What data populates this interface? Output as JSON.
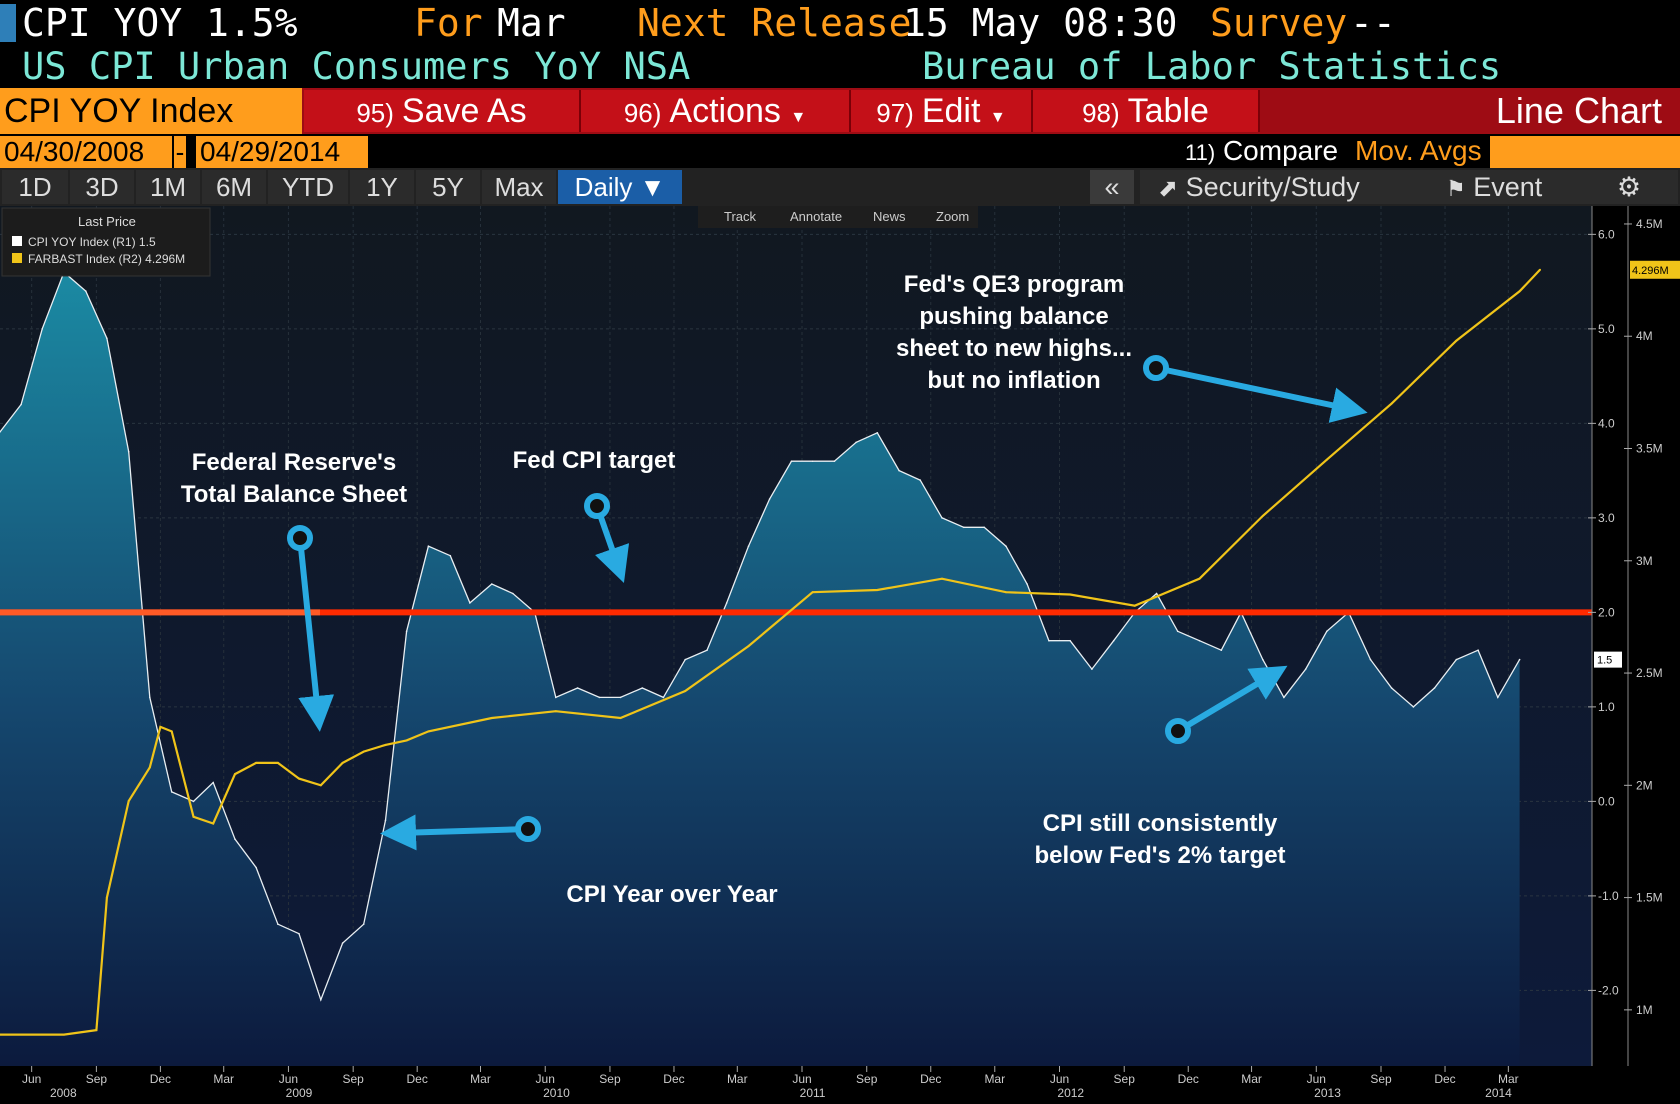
{
  "header": {
    "ticker": "CPI YOY",
    "last": "1.5%",
    "for_label": "For",
    "for_value": "Mar",
    "next_release_label": "Next Release",
    "next_release_value": "15 May 08:30",
    "survey_label": "Survey",
    "survey_value": "--",
    "description": "US CPI Urban Consumers YoY NSA",
    "source": "Bureau of Labor Statistics"
  },
  "toolbar": {
    "security": "CPI YOY Index",
    "buttons": [
      {
        "num": "95)",
        "label": "Save As"
      },
      {
        "num": "96)",
        "label": "Actions"
      },
      {
        "num": "97)",
        "label": "Edit"
      },
      {
        "num": "98)",
        "label": "Table"
      }
    ],
    "chart_type": "Line Chart"
  },
  "date_range": {
    "start": "04/30/2008",
    "separator": "-",
    "end": "04/29/2014",
    "compare_num": "11)",
    "compare_label": "Compare",
    "mov_avgs": "Mov. Avgs"
  },
  "range_tabs": [
    "1D",
    "3D",
    "1M",
    "6M",
    "YTD",
    "1Y",
    "5Y",
    "Max"
  ],
  "period": "Daily",
  "right_tools": {
    "collapse": "«",
    "security_study": "Security/Study",
    "event": "Event"
  },
  "chart_tools": [
    "Track",
    "Annotate",
    "News",
    "Zoom"
  ],
  "legend": {
    "title": "Last Price",
    "items": [
      {
        "text": "CPI YOY Index  (R1)  1.5",
        "color": "#ffffff"
      },
      {
        "text": "FARBAST Index  (R2) 4.296M",
        "color": "#f0c419"
      }
    ]
  },
  "annotations": {
    "balance_sheet": [
      "Federal Reserve's",
      "Total Balance Sheet"
    ],
    "fed_target": "Fed CPI target",
    "qe3": [
      "Fed's QE3 program",
      "pushing balance",
      "sheet to new highs...",
      "but no inflation"
    ],
    "cpi_yoy": "CPI Year over Year",
    "cpi_below": [
      "CPI still consistently",
      "below Fed's 2% target"
    ]
  },
  "colors": {
    "target_line": "#ff2a00",
    "balance_line": "#f0c419",
    "cpi_fill_top": "#1b7e98",
    "cpi_fill_bottom": "#0d1a3a",
    "arrow": "#29aae1"
  },
  "chart_data": {
    "type": "area",
    "series": [
      {
        "name": "CPI YOY Index",
        "axis": "R1",
        "last": "1.5",
        "x": [
          "2008-04-30",
          "2008-05-31",
          "2008-06-30",
          "2008-07-31",
          "2008-08-31",
          "2008-09-30",
          "2008-10-31",
          "2008-11-30",
          "2008-12-31",
          "2009-01-31",
          "2009-02-28",
          "2009-03-31",
          "2009-04-30",
          "2009-05-31",
          "2009-06-30",
          "2009-07-31",
          "2009-08-31",
          "2009-09-30",
          "2009-10-31",
          "2009-11-30",
          "2009-12-31",
          "2010-01-31",
          "2010-02-28",
          "2010-03-31",
          "2010-04-30",
          "2010-05-31",
          "2010-06-30",
          "2010-07-31",
          "2010-08-31",
          "2010-09-30",
          "2010-10-31",
          "2010-11-30",
          "2010-12-31",
          "2011-01-31",
          "2011-02-28",
          "2011-03-31",
          "2011-04-30",
          "2011-05-31",
          "2011-06-30",
          "2011-07-31",
          "2011-08-31",
          "2011-09-30",
          "2011-10-31",
          "2011-11-30",
          "2011-12-31",
          "2012-01-31",
          "2012-02-29",
          "2012-03-31",
          "2012-04-30",
          "2012-05-31",
          "2012-06-30",
          "2012-07-31",
          "2012-08-31",
          "2012-09-30",
          "2012-10-31",
          "2012-11-30",
          "2012-12-31",
          "2013-01-31",
          "2013-02-28",
          "2013-03-31",
          "2013-04-30",
          "2013-05-31",
          "2013-06-30",
          "2013-07-31",
          "2013-08-31",
          "2013-09-30",
          "2013-10-31",
          "2013-11-30",
          "2013-12-31",
          "2014-01-31",
          "2014-02-28",
          "2014-03-31"
        ],
        "y": [
          3.9,
          4.2,
          5.0,
          5.6,
          5.4,
          4.9,
          3.7,
          1.1,
          0.1,
          0.0,
          0.2,
          -0.4,
          -0.7,
          -1.3,
          -1.4,
          -2.1,
          -1.5,
          -1.3,
          -0.2,
          1.8,
          2.7,
          2.6,
          2.1,
          2.3,
          2.2,
          2.0,
          1.1,
          1.2,
          1.1,
          1.1,
          1.2,
          1.1,
          1.5,
          1.6,
          2.1,
          2.7,
          3.2,
          3.6,
          3.6,
          3.6,
          3.8,
          3.9,
          3.5,
          3.4,
          3.0,
          2.9,
          2.9,
          2.7,
          2.3,
          1.7,
          1.7,
          1.4,
          1.7,
          2.0,
          2.2,
          1.8,
          1.7,
          1.6,
          2.0,
          1.5,
          1.1,
          1.4,
          1.8,
          2.0,
          1.5,
          1.2,
          1.0,
          1.2,
          1.5,
          1.6,
          1.1,
          1.5
        ]
      },
      {
        "name": "FARBAST Index",
        "axis": "R2",
        "last": "4.296M",
        "x": [
          "2008-04-30",
          "2008-07-31",
          "2008-09-15",
          "2008-09-30",
          "2008-10-31",
          "2008-11-30",
          "2008-12-15",
          "2008-12-31",
          "2009-01-31",
          "2009-02-28",
          "2009-03-31",
          "2009-04-30",
          "2009-05-31",
          "2009-06-30",
          "2009-07-31",
          "2009-08-31",
          "2009-09-30",
          "2009-10-31",
          "2009-11-30",
          "2009-12-31",
          "2010-03-31",
          "2010-06-30",
          "2010-09-30",
          "2010-12-31",
          "2011-03-31",
          "2011-06-30",
          "2011-09-30",
          "2011-12-31",
          "2012-03-31",
          "2012-06-30",
          "2012-09-30",
          "2012-12-31",
          "2013-03-31",
          "2013-06-30",
          "2013-09-30",
          "2013-12-31",
          "2014-03-31",
          "2014-04-29"
        ],
        "y": [
          0.89,
          0.89,
          0.91,
          1.5,
          1.93,
          2.08,
          2.26,
          2.24,
          1.86,
          1.83,
          2.05,
          2.1,
          2.1,
          2.03,
          2.0,
          2.1,
          2.15,
          2.18,
          2.2,
          2.24,
          2.3,
          2.33,
          2.3,
          2.42,
          2.62,
          2.86,
          2.87,
          2.92,
          2.86,
          2.85,
          2.8,
          2.92,
          3.2,
          3.45,
          3.7,
          3.98,
          4.2,
          4.296
        ]
      }
    ],
    "reference_line": {
      "label": "Fed CPI target",
      "value": 2.0,
      "axis": "R1"
    },
    "x_ticks": [
      "Jun",
      "Sep",
      "Dec",
      "Mar",
      "Jun",
      "Sep",
      "Dec",
      "Mar",
      "Jun",
      "Sep",
      "Dec",
      "Mar",
      "Jun",
      "Sep",
      "Dec",
      "Mar",
      "Jun",
      "Sep",
      "Dec",
      "Mar",
      "Jun",
      "Sep",
      "Dec",
      "Mar"
    ],
    "x_years": [
      "2008",
      "2009",
      "2010",
      "2011",
      "2012",
      "2013",
      "2014"
    ],
    "y_ticks_r1": [
      "6.0",
      "5.0",
      "4.0",
      "3.0",
      "2.0",
      "1.0",
      "0.0",
      "-1.0",
      "-2.0"
    ],
    "y_ticks_r2": [
      "4.5M",
      "4M",
      "3.5M",
      "3M",
      "2.5M",
      "2M",
      "1.5M",
      "1M"
    ],
    "ylim_r1": [
      -2.8,
      6.3
    ],
    "ylim_r2": [
      0.75,
      4.58
    ],
    "last_badge_r1": "1.5",
    "last_badge_r2": "4.296M"
  }
}
